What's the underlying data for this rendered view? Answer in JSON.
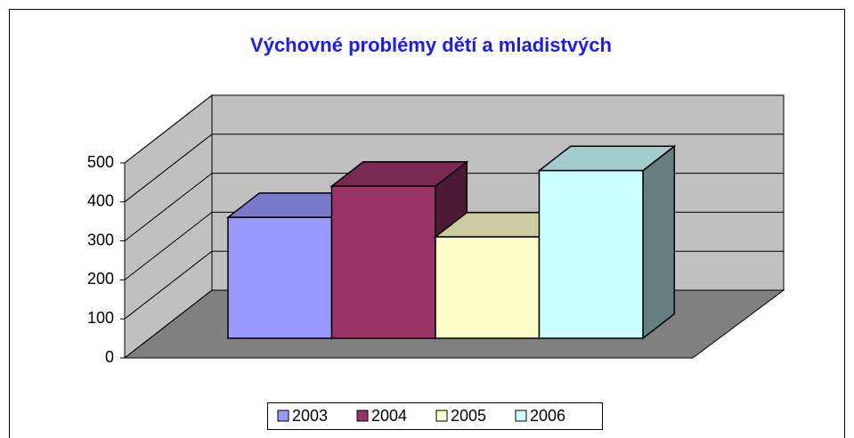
{
  "chart_data": {
    "type": "bar",
    "title": "Výchovné problémy dětí a mladistvých",
    "categories": [
      null
    ],
    "series": [
      {
        "name": "2003",
        "color": "#9999ff",
        "values": [
          310
        ]
      },
      {
        "name": "2004",
        "color": "#993366",
        "values": [
          390
        ]
      },
      {
        "name": "2005",
        "color": "#ffffcc",
        "values": [
          260
        ]
      },
      {
        "name": "2006",
        "color": "#ccffff",
        "values": [
          430
        ]
      }
    ],
    "ylim": [
      0,
      500
    ],
    "yticks": [
      0,
      100,
      200,
      300,
      400,
      500
    ],
    "grid": true,
    "legend": "bottom"
  }
}
